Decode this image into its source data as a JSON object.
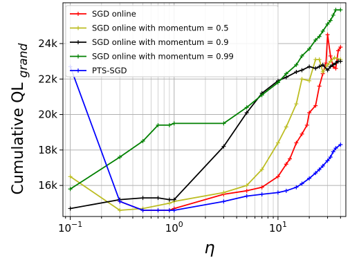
{
  "chart_data": {
    "type": "line",
    "x_scale": "log",
    "xlim": [
      0.085,
      45
    ],
    "ylim": [
      14250,
      26300
    ],
    "grid": "log-major-and-minor",
    "legend_position": "top-left",
    "xlabel": "η",
    "ylabel": {
      "main": "Cumulative QL",
      "subscript": "grand"
    },
    "x_tick_labels": [
      {
        "x": 0.1,
        "base": "10",
        "exp": "−1"
      },
      {
        "x": 1,
        "base": "10",
        "exp": "0"
      },
      {
        "x": 10,
        "base": "10",
        "exp": "1"
      }
    ],
    "y_ticks": [
      {
        "y": 16000,
        "label": "16k"
      },
      {
        "y": 18000,
        "label": "18k"
      },
      {
        "y": 20000,
        "label": "20k"
      },
      {
        "y": 22000,
        "label": "22k"
      },
      {
        "y": 24000,
        "label": "24k"
      }
    ],
    "series": [
      {
        "name": "SGD online",
        "color": "#ff0000",
        "points": [
          [
            0.3,
            15100
          ],
          [
            0.5,
            14600
          ],
          [
            0.7,
            14600
          ],
          [
            0.9,
            14600
          ],
          [
            1.0,
            14700
          ],
          [
            3.0,
            15500
          ],
          [
            5.0,
            15700
          ],
          [
            7.0,
            15900
          ],
          [
            10.0,
            16500
          ],
          [
            12.0,
            17200
          ],
          [
            13.0,
            17500
          ],
          [
            15.0,
            18400
          ],
          [
            17.0,
            18900
          ],
          [
            19.0,
            19400
          ],
          [
            20.0,
            20100
          ],
          [
            23.0,
            20500
          ],
          [
            25.0,
            21600
          ],
          [
            27.0,
            22300
          ],
          [
            29.0,
            22900
          ],
          [
            30.0,
            24500
          ],
          [
            32.0,
            23300
          ],
          [
            34.0,
            22700
          ],
          [
            36.0,
            22600
          ],
          [
            38.0,
            23600
          ],
          [
            40.0,
            23800
          ]
        ]
      },
      {
        "name": "SGD online with momentum = 0.5",
        "color": "#bcbd22",
        "points": [
          [
            0.1,
            16500
          ],
          [
            0.3,
            14600
          ],
          [
            0.5,
            14700
          ],
          [
            0.9,
            15000
          ],
          [
            1.0,
            15100
          ],
          [
            3.0,
            15600
          ],
          [
            5.0,
            16000
          ],
          [
            7.0,
            16900
          ],
          [
            10.0,
            18400
          ],
          [
            12.0,
            19300
          ],
          [
            15.0,
            20600
          ],
          [
            17.0,
            22000
          ],
          [
            20.0,
            21900
          ],
          [
            23.0,
            23100
          ],
          [
            25.0,
            23100
          ],
          [
            27.0,
            22400
          ],
          [
            30.0,
            22800
          ],
          [
            32.0,
            23000
          ],
          [
            35.0,
            23200
          ],
          [
            40.0,
            23100
          ]
        ]
      },
      {
        "name": "SGD online with momentum = 0.9",
        "color": "#000000",
        "points": [
          [
            0.1,
            14700
          ],
          [
            0.3,
            15200
          ],
          [
            0.5,
            15300
          ],
          [
            0.7,
            15300
          ],
          [
            0.9,
            15200
          ],
          [
            1.0,
            15200
          ],
          [
            3.0,
            18200
          ],
          [
            5.0,
            20100
          ],
          [
            7.0,
            21200
          ],
          [
            10.0,
            21900
          ],
          [
            12.0,
            22100
          ],
          [
            15.0,
            22400
          ],
          [
            17.0,
            22500
          ],
          [
            20.0,
            22700
          ],
          [
            23.0,
            22600
          ],
          [
            25.0,
            22700
          ],
          [
            27.0,
            22800
          ],
          [
            30.0,
            22500
          ],
          [
            32.0,
            22700
          ],
          [
            34.0,
            22800
          ],
          [
            36.0,
            22900
          ],
          [
            38.0,
            23000
          ],
          [
            40.0,
            23000
          ]
        ]
      },
      {
        "name": "SGD online with momentum = 0.99",
        "color": "#008000",
        "points": [
          [
            0.1,
            15800
          ],
          [
            0.3,
            17600
          ],
          [
            0.5,
            18500
          ],
          [
            0.7,
            19400
          ],
          [
            0.9,
            19400
          ],
          [
            1.0,
            19500
          ],
          [
            3.0,
            19500
          ],
          [
            5.0,
            20400
          ],
          [
            7.0,
            21100
          ],
          [
            10.0,
            21800
          ],
          [
            12.0,
            22300
          ],
          [
            15.0,
            22800
          ],
          [
            17.0,
            23300
          ],
          [
            20.0,
            23700
          ],
          [
            23.0,
            24200
          ],
          [
            25.0,
            24400
          ],
          [
            27.0,
            24700
          ],
          [
            30.0,
            25100
          ],
          [
            32.0,
            25300
          ],
          [
            34.0,
            25600
          ],
          [
            36.0,
            25900
          ],
          [
            40.0,
            25900
          ]
        ]
      },
      {
        "name": "PTS-SGD",
        "color": "#0000ff",
        "points": [
          [
            0.1,
            22700
          ],
          [
            0.3,
            15100
          ],
          [
            0.5,
            14600
          ],
          [
            0.7,
            14600
          ],
          [
            0.9,
            14600
          ],
          [
            1.0,
            14600
          ],
          [
            3.0,
            15100
          ],
          [
            5.0,
            15400
          ],
          [
            7.0,
            15500
          ],
          [
            10.0,
            15600
          ],
          [
            12.0,
            15700
          ],
          [
            15.0,
            15900
          ],
          [
            17.0,
            16100
          ],
          [
            20.0,
            16400
          ],
          [
            23.0,
            16700
          ],
          [
            25.0,
            16900
          ],
          [
            27.0,
            17100
          ],
          [
            30.0,
            17400
          ],
          [
            32.0,
            17600
          ],
          [
            34.0,
            17900
          ],
          [
            36.0,
            18100
          ],
          [
            40.0,
            18300
          ]
        ]
      }
    ]
  }
}
